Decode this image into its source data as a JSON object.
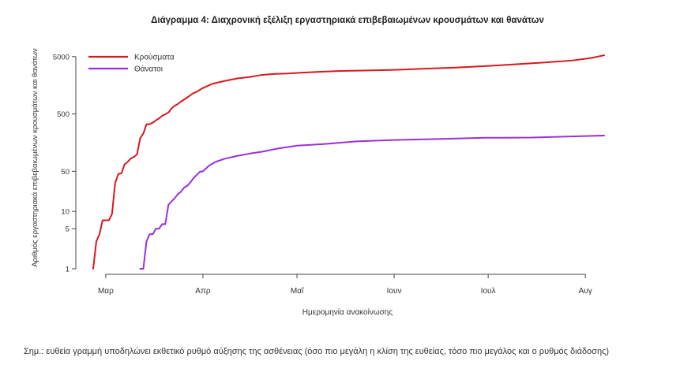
{
  "chart_data": {
    "type": "line",
    "title": "Διάγραμμα 4: Διαχρονική εξέλιξη εργαστηριακά επιβεβαιωμένων κρουσμάτων και θανάτων",
    "xlabel": "Ημερομηνία ανακοίνωσης",
    "ylabel": "Αριθμός εργαστηριακά επιβεβαιωμένων κρουσμάτων και θανάτων",
    "y_scale": "log",
    "ylim": [
      1,
      6000
    ],
    "y_ticks": [
      1,
      5,
      10,
      50,
      500,
      5000
    ],
    "y_tick_labels": [
      "1",
      "5",
      "10",
      "50",
      "500",
      "5000"
    ],
    "x_range": [
      "2020-02-26",
      "2020-08-07"
    ],
    "x_ticks": [
      "2020-03-01",
      "2020-04-01",
      "2020-05-01",
      "2020-06-01",
      "2020-07-01",
      "2020-08-01"
    ],
    "x_tick_labels": [
      "Μαρ",
      "Απρ",
      "Μαΐ",
      "Ιουν",
      "Ιουλ",
      "Αυγ"
    ],
    "grid": false,
    "legend_position": "top-left",
    "series": [
      {
        "name": "Κρούσματα",
        "color": "#d7191c",
        "points": [
          [
            "2020-02-26",
            1
          ],
          [
            "2020-02-27",
            3
          ],
          [
            "2020-02-28",
            4
          ],
          [
            "2020-02-29",
            7
          ],
          [
            "2020-03-02",
            7
          ],
          [
            "2020-03-03",
            9
          ],
          [
            "2020-03-04",
            31
          ],
          [
            "2020-03-05",
            45
          ],
          [
            "2020-03-06",
            46
          ],
          [
            "2020-03-07",
            66
          ],
          [
            "2020-03-08",
            73
          ],
          [
            "2020-03-09",
            84
          ],
          [
            "2020-03-10",
            89
          ],
          [
            "2020-03-11",
            99
          ],
          [
            "2020-03-12",
            190
          ],
          [
            "2020-03-13",
            228
          ],
          [
            "2020-03-14",
            331
          ],
          [
            "2020-03-15",
            331
          ],
          [
            "2020-03-16",
            352
          ],
          [
            "2020-03-17",
            387
          ],
          [
            "2020-03-18",
            418
          ],
          [
            "2020-03-19",
            464
          ],
          [
            "2020-03-20",
            495
          ],
          [
            "2020-03-21",
            530
          ],
          [
            "2020-03-22",
            624
          ],
          [
            "2020-03-23",
            695
          ],
          [
            "2020-03-24",
            743
          ],
          [
            "2020-03-25",
            821
          ],
          [
            "2020-03-26",
            892
          ],
          [
            "2020-03-27",
            966
          ],
          [
            "2020-03-28",
            1061
          ],
          [
            "2020-03-29",
            1156
          ],
          [
            "2020-03-30",
            1212
          ],
          [
            "2020-03-31",
            1314
          ],
          [
            "2020-04-01",
            1415
          ],
          [
            "2020-04-04",
            1673
          ],
          [
            "2020-04-08",
            1884
          ],
          [
            "2020-04-12",
            2081
          ],
          [
            "2020-04-16",
            2207
          ],
          [
            "2020-04-20",
            2401
          ],
          [
            "2020-04-24",
            2490
          ],
          [
            "2020-04-28",
            2534
          ],
          [
            "2020-05-01",
            2591
          ],
          [
            "2020-05-08",
            2710
          ],
          [
            "2020-05-15",
            2810
          ],
          [
            "2020-05-22",
            2853
          ],
          [
            "2020-05-31",
            2917
          ],
          [
            "2020-06-10",
            3058
          ],
          [
            "2020-06-20",
            3203
          ],
          [
            "2020-06-30",
            3409
          ],
          [
            "2020-07-10",
            3672
          ],
          [
            "2020-07-20",
            3983
          ],
          [
            "2020-07-28",
            4279
          ],
          [
            "2020-08-03",
            4737
          ],
          [
            "2020-08-07",
            5270
          ]
        ]
      },
      {
        "name": "Θάνατοι",
        "color": "#9b30d9",
        "points": [
          [
            "2020-03-12",
            1
          ],
          [
            "2020-03-13",
            1
          ],
          [
            "2020-03-14",
            3
          ],
          [
            "2020-03-15",
            4
          ],
          [
            "2020-03-16",
            4
          ],
          [
            "2020-03-17",
            5
          ],
          [
            "2020-03-18",
            5
          ],
          [
            "2020-03-19",
            6
          ],
          [
            "2020-03-20",
            6
          ],
          [
            "2020-03-21",
            13
          ],
          [
            "2020-03-22",
            15
          ],
          [
            "2020-03-23",
            17
          ],
          [
            "2020-03-24",
            20
          ],
          [
            "2020-03-25",
            22
          ],
          [
            "2020-03-26",
            26
          ],
          [
            "2020-03-27",
            28
          ],
          [
            "2020-03-28",
            32
          ],
          [
            "2020-03-29",
            38
          ],
          [
            "2020-03-30",
            43
          ],
          [
            "2020-03-31",
            49
          ],
          [
            "2020-04-01",
            50
          ],
          [
            "2020-04-03",
            63
          ],
          [
            "2020-04-05",
            73
          ],
          [
            "2020-04-08",
            83
          ],
          [
            "2020-04-12",
            93
          ],
          [
            "2020-04-16",
            102
          ],
          [
            "2020-04-20",
            110
          ],
          [
            "2020-04-25",
            125
          ],
          [
            "2020-05-01",
            140
          ],
          [
            "2020-05-10",
            150
          ],
          [
            "2020-05-20",
            166
          ],
          [
            "2020-05-31",
            175
          ],
          [
            "2020-06-15",
            183
          ],
          [
            "2020-06-30",
            192
          ],
          [
            "2020-07-15",
            194
          ],
          [
            "2020-07-25",
            201
          ],
          [
            "2020-08-07",
            210
          ]
        ]
      }
    ]
  },
  "note": "Σημ.: ευθεία γραμμή υποδηλώνει εκθετικό ρυθμό αύξησης της ασθένειας (όσο πιο μεγάλη η κλίση της ευθείας, τόσο πιο μεγάλος και ο ρυθμός διάδοσης)"
}
